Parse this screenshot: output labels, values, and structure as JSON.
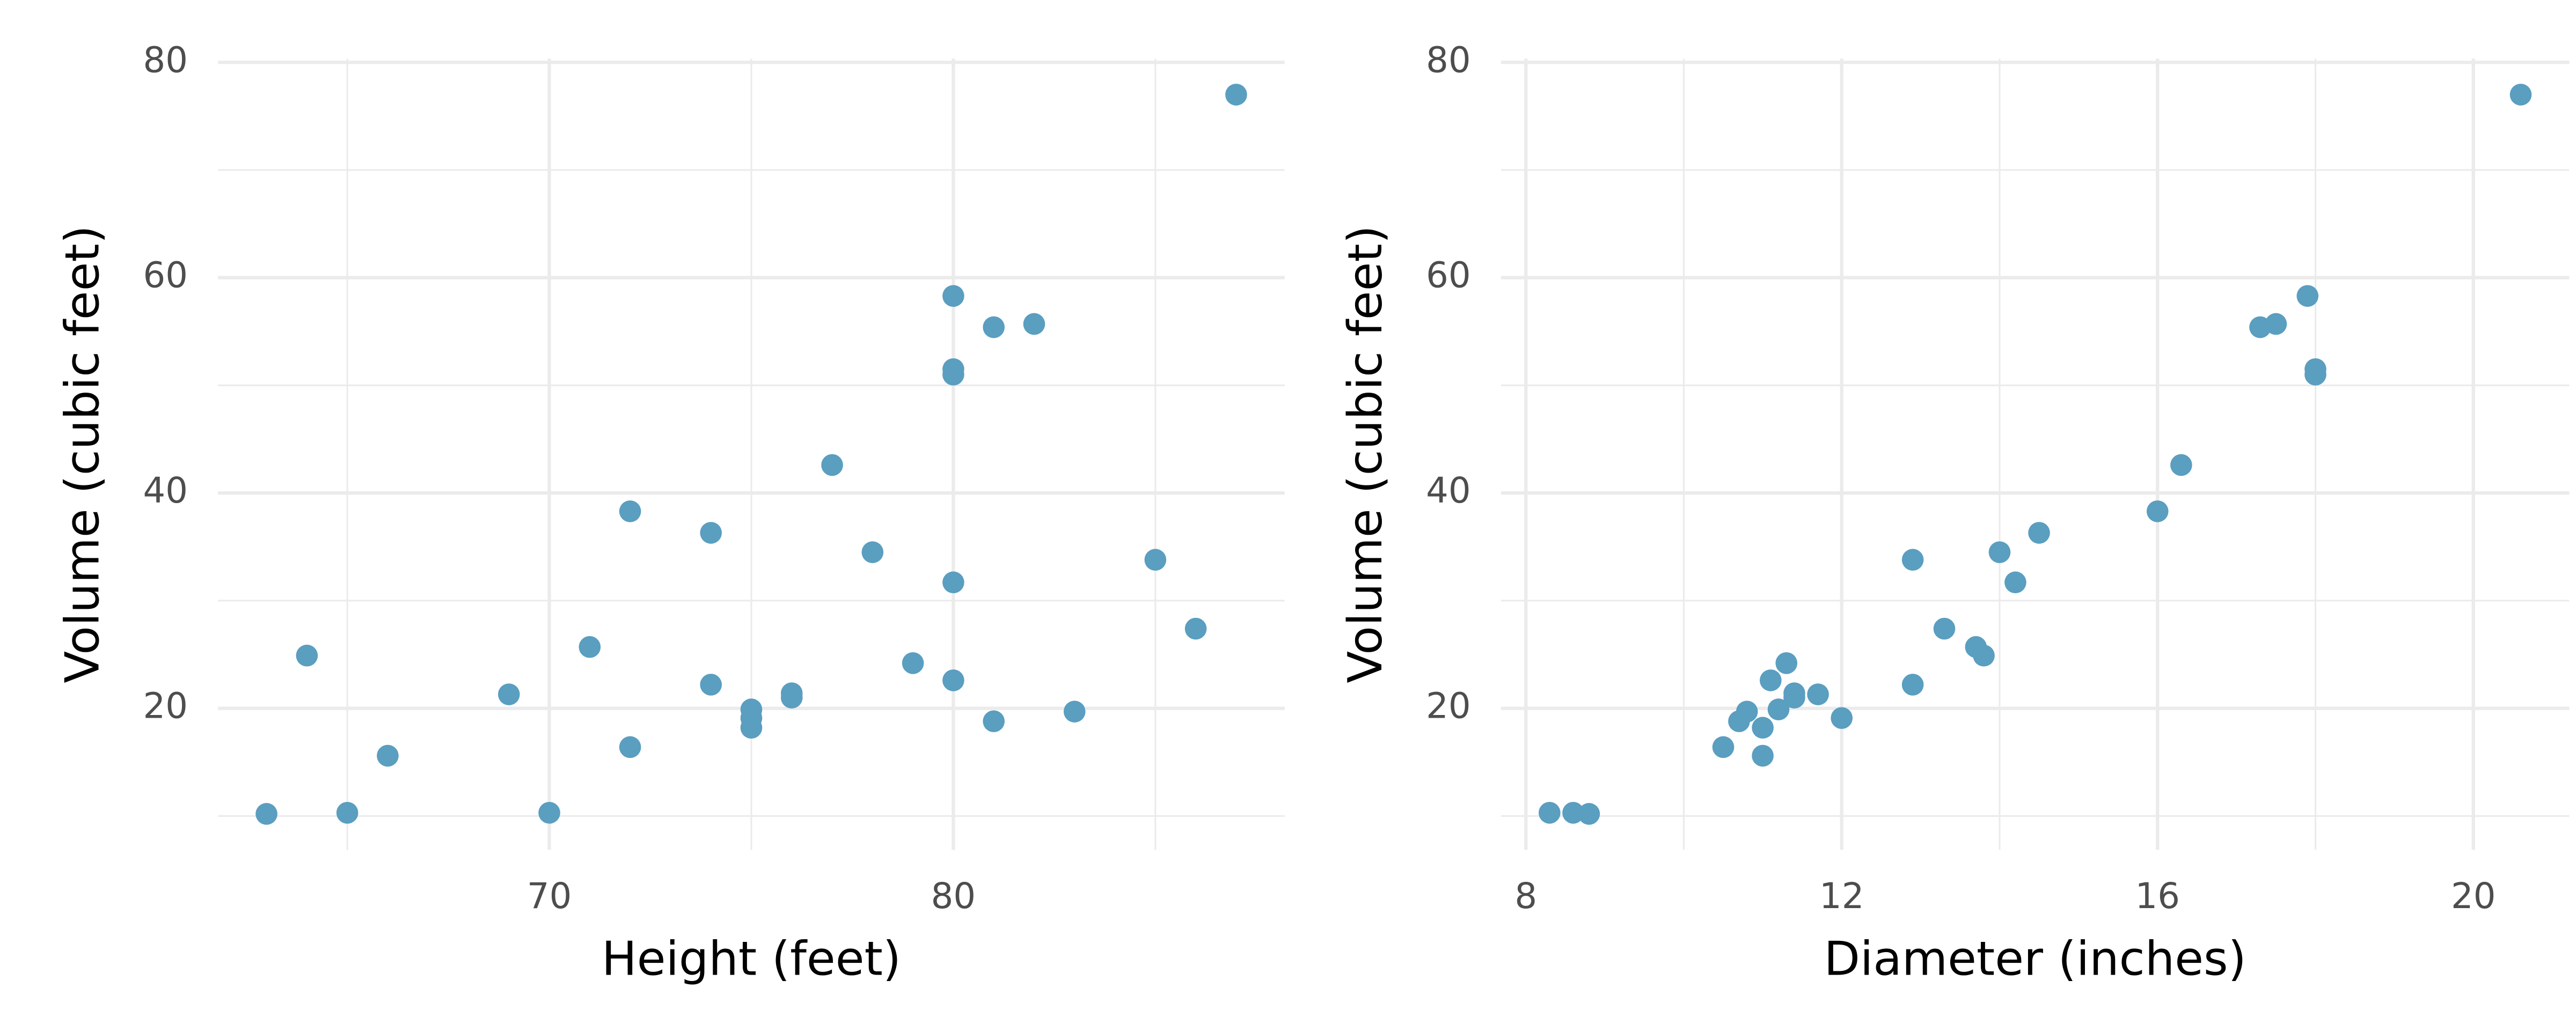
{
  "chart_data": [
    {
      "type": "scatter",
      "xlabel": "Height (feet)",
      "ylabel": "Volume (cubic feet)",
      "color": "#5a9ec0",
      "x": [
        70,
        65,
        63,
        72,
        81,
        83,
        66,
        75,
        80,
        75,
        79,
        76,
        76,
        69,
        75,
        74,
        85,
        86,
        71,
        64,
        78,
        80,
        74,
        72,
        77,
        81,
        82,
        80,
        80,
        80,
        87
      ],
      "y": [
        10.3,
        10.3,
        10.2,
        16.4,
        18.8,
        19.7,
        15.6,
        18.2,
        22.6,
        19.9,
        24.2,
        21.0,
        21.4,
        21.3,
        19.1,
        22.2,
        33.8,
        27.4,
        25.7,
        24.9,
        34.5,
        31.7,
        36.3,
        38.3,
        42.6,
        55.4,
        55.7,
        58.3,
        51.5,
        51.0,
        77.0
      ],
      "xlim": [
        61.8,
        88.2
      ],
      "ylim": [
        6.86,
        80.34
      ],
      "xticks": [
        70,
        80
      ],
      "yticks": [
        20,
        40,
        60,
        80
      ],
      "minor_xticks": [
        65,
        75,
        85
      ],
      "minor_yticks": [
        10,
        30,
        50,
        70
      ],
      "grid": true
    },
    {
      "type": "scatter",
      "xlabel": "Diameter (inches)",
      "ylabel": "Volume (cubic feet)",
      "color": "#5a9ec0",
      "x": [
        8.3,
        8.6,
        8.8,
        10.5,
        10.7,
        10.8,
        11.0,
        11.0,
        11.1,
        11.2,
        11.3,
        11.4,
        11.4,
        11.7,
        12.0,
        12.9,
        12.9,
        13.3,
        13.7,
        13.8,
        14.0,
        14.2,
        14.5,
        16.0,
        16.3,
        17.3,
        17.5,
        17.9,
        18.0,
        18.0,
        20.6
      ],
      "y": [
        10.3,
        10.3,
        10.2,
        16.4,
        18.8,
        19.7,
        15.6,
        18.2,
        22.6,
        19.9,
        24.2,
        21.0,
        21.4,
        21.3,
        19.1,
        22.2,
        33.8,
        27.4,
        25.7,
        24.9,
        34.5,
        31.7,
        36.3,
        38.3,
        42.6,
        55.4,
        55.7,
        58.3,
        51.5,
        51.0,
        77.0
      ],
      "xlim": [
        7.685,
        21.215
      ],
      "ylim": [
        6.86,
        80.34
      ],
      "xticks": [
        8,
        12,
        16,
        20
      ],
      "yticks": [
        20,
        40,
        60,
        80
      ],
      "minor_xticks": [
        10,
        14,
        18
      ],
      "minor_yticks": [
        10,
        30,
        50,
        70
      ],
      "grid": true
    }
  ]
}
